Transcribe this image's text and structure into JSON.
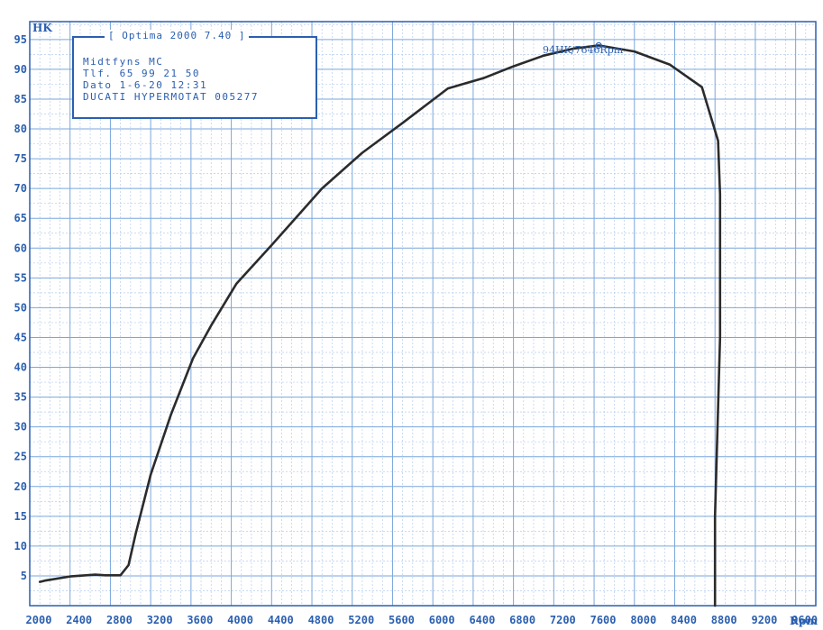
{
  "header": {
    "y_unit": "HK",
    "x_unit": "Rpm"
  },
  "infobox": {
    "title": "[ Optima 2000 7.40 ]",
    "lines": [
      "Midtfyns MC",
      "Tlf. 65 99 21 50",
      "Dato 1-6-20  12:31",
      "DUCATI HYPERMOTAT 005277"
    ]
  },
  "peak_label": "94HK/7646Rpm",
  "chart_data": {
    "type": "line",
    "title": "",
    "xlabel": "Rpm",
    "ylabel": "HK",
    "xlim": [
      2000,
      9800
    ],
    "ylim": [
      0,
      98
    ],
    "grid": true,
    "x_ticks": [
      "2000",
      "2400",
      "2800",
      "3200",
      "3600",
      "4000",
      "4400",
      "4800",
      "5200",
      "5600",
      "6000",
      "6400",
      "6800",
      "7200",
      "7600",
      "8000",
      "8400",
      "8800",
      "9200",
      "9600"
    ],
    "y_ticks": [
      "5",
      "10",
      "15",
      "20",
      "25",
      "30",
      "35",
      "40",
      "45",
      "50",
      "55",
      "60",
      "65",
      "70",
      "75",
      "80",
      "85",
      "90",
      "95"
    ],
    "series": [
      {
        "color": "#2b2b2b",
        "x": [
          2100,
          2150,
          2400,
          2650,
          2750,
          2900,
          2980,
          3050,
          3200,
          3400,
          3620,
          3800,
          4050,
          4400,
          4900,
          5300,
          5700,
          6150,
          6500,
          6800,
          7100,
          7400,
          7646,
          8000,
          8350,
          8670,
          8830,
          8850,
          8850,
          8800,
          8800
        ],
        "y": [
          4,
          4.2,
          4.9,
          5.2,
          5.1,
          5.1,
          6.8,
          12,
          22,
          32,
          41.5,
          47,
          54,
          60.5,
          70,
          76,
          81,
          86.8,
          88.5,
          90.5,
          92.3,
          93.5,
          94,
          93,
          90.8,
          87,
          78,
          69,
          45,
          15,
          0
        ]
      }
    ],
    "annotations": [
      {
        "text": "94HK/7646Rpm",
        "x": 7646,
        "y": 94
      }
    ]
  }
}
